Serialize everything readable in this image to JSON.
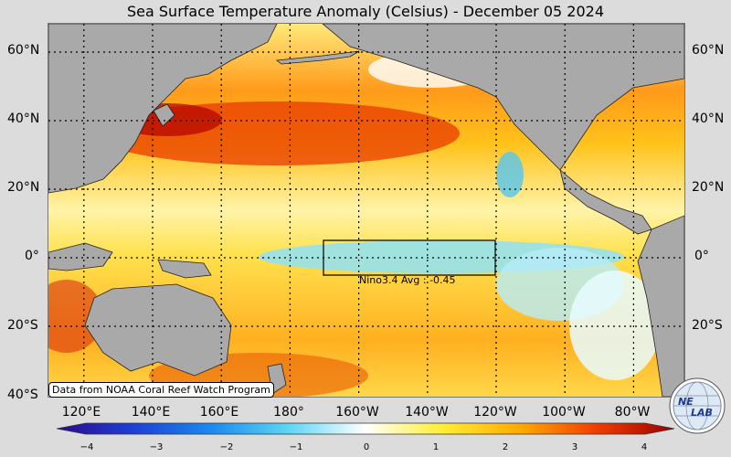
{
  "title": "Sea Surface Temperature Anomaly (Celsius) - December 05 2024",
  "lat_labels_left": [
    "60°N",
    "40°N",
    "20°N",
    "0°",
    "20°S",
    "40°S"
  ],
  "lat_labels_right": [
    "60°N",
    "40°N",
    "20°N",
    "0°",
    "20°S"
  ],
  "lon_labels": [
    "120°E",
    "140°E",
    "160°E",
    "180°",
    "160°W",
    "140°W",
    "120°W",
    "100°W",
    "80°W"
  ],
  "source": "Data from NOAA Coral Reef Watch Program",
  "nino": {
    "label": "Nino3.4 Avg :",
    "value": "-0.45"
  },
  "colorbar": {
    "ticks": [
      "−4",
      "−3",
      "−2",
      "−1",
      "0",
      "1",
      "2",
      "3",
      "4"
    ],
    "range": [
      -4,
      4
    ],
    "colors": [
      "#2b0a8c",
      "#1f3fd6",
      "#1b8af0",
      "#5cd6f5",
      "#ffffff",
      "#ffee33",
      "#ffaa00",
      "#f03c00",
      "#9c0000"
    ]
  },
  "logo": {
    "top": "NE",
    "bottom": "LAB",
    "icon": "nelab-globe-logo"
  },
  "colors": {
    "land": "#a9a9a9",
    "ocean_warm": "#ffd21f",
    "ocean_cool": "#9fe6f8",
    "background": "#dcdcdc"
  }
}
